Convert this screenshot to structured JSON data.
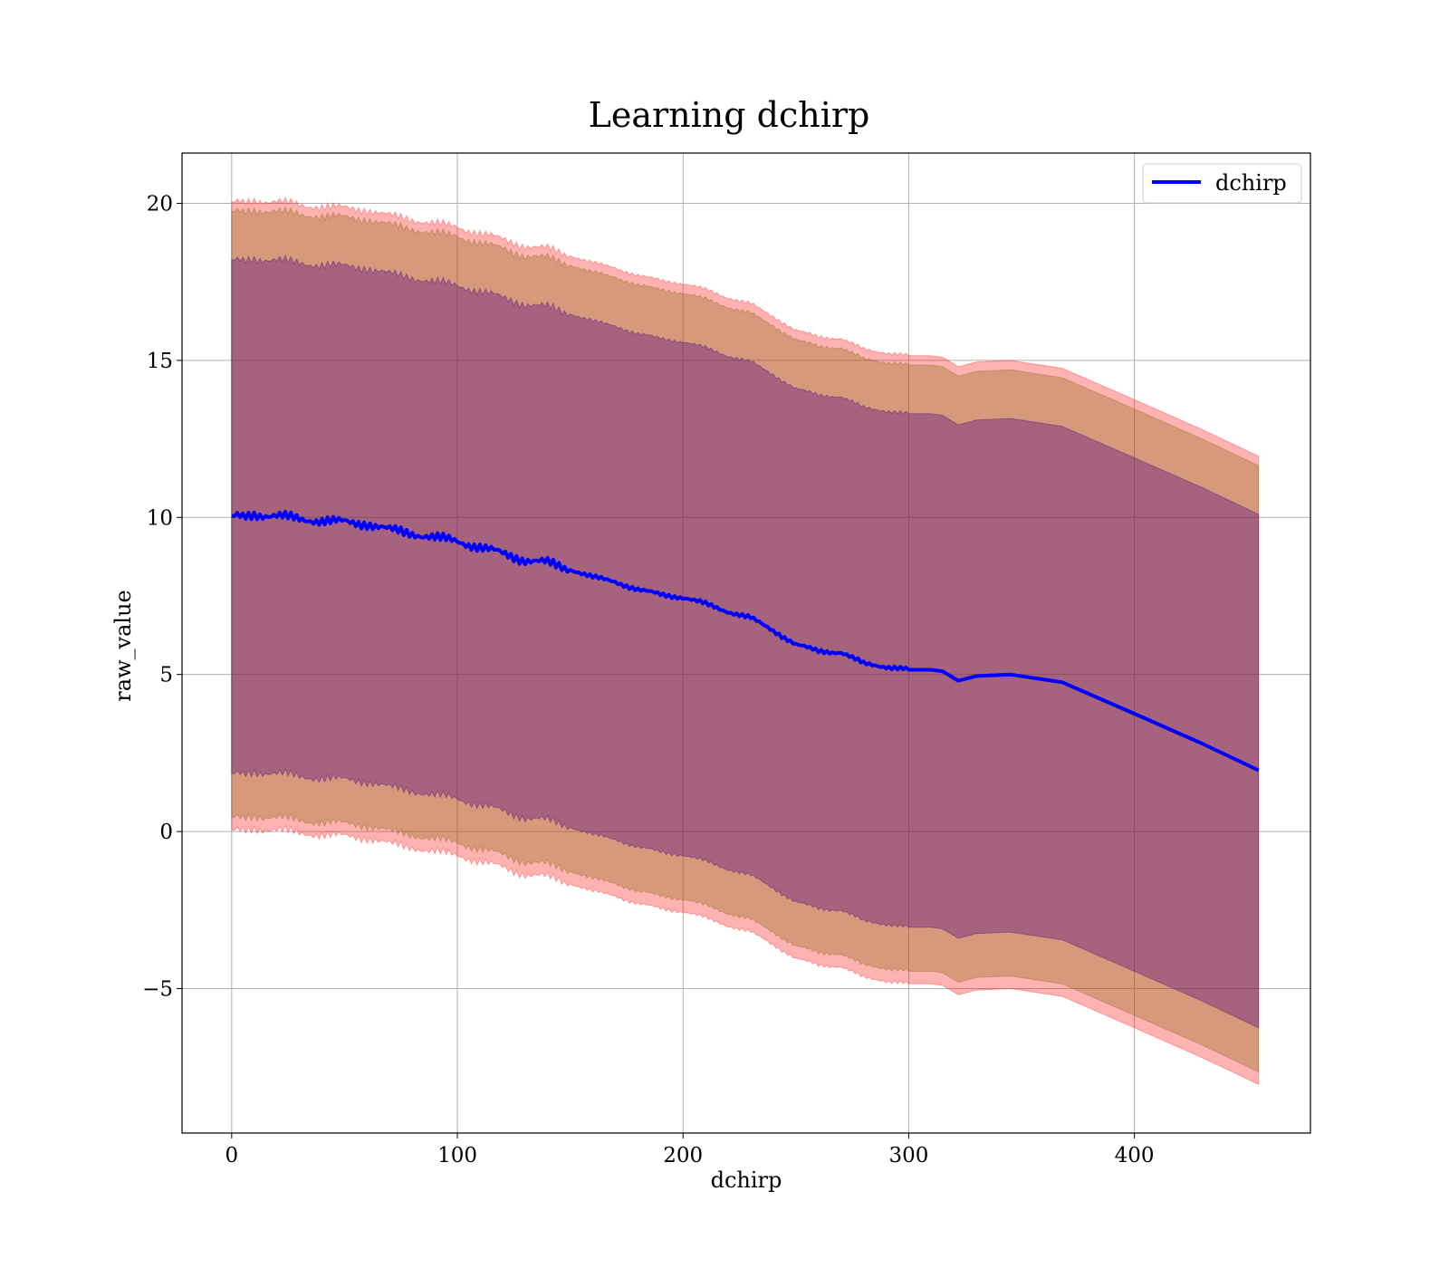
{
  "chart_data": {
    "type": "line",
    "title": "Learning dchirp",
    "xlabel": "dchirp",
    "ylabel": "raw_value",
    "xlim": [
      -22,
      478
    ],
    "ylim": [
      -9.6,
      21.6
    ],
    "xticks": [
      0,
      100,
      200,
      300,
      400
    ],
    "yticks": [
      -5,
      0,
      5,
      10,
      15,
      20
    ],
    "ytick_labels": [
      "−5",
      "0",
      "5",
      "10",
      "15",
      "20"
    ],
    "grid": true,
    "legend_position": "top-right",
    "series": [
      {
        "name": "dchirp",
        "color": "#0000ff",
        "x": [
          0,
          5,
          10,
          20,
          30,
          40,
          50,
          60,
          70,
          80,
          90,
          100,
          110,
          120,
          130,
          140,
          150,
          160,
          170,
          180,
          190,
          200,
          210,
          220,
          230,
          240,
          250,
          260,
          270,
          280,
          290,
          300,
          310,
          315,
          322,
          330,
          345,
          368,
          400,
          430,
          455
        ],
        "y": [
          10.05,
          10.0,
          10.1,
          10.05,
          9.95,
          9.9,
          9.85,
          9.8,
          9.6,
          9.5,
          9.35,
          9.25,
          9.05,
          8.85,
          8.65,
          8.55,
          8.35,
          8.1,
          7.95,
          7.7,
          7.55,
          7.45,
          7.25,
          7.0,
          6.8,
          6.4,
          5.95,
          5.75,
          5.7,
          5.35,
          5.25,
          5.15,
          5.15,
          5.1,
          4.8,
          4.95,
          5.0,
          4.75,
          3.75,
          2.8,
          1.95
        ]
      }
    ],
    "bands": [
      {
        "color": "#ff0000",
        "opacity": 0.3,
        "offset_low": -10.0,
        "offset_high": 10.0
      },
      {
        "color": "#8b6914",
        "opacity": 0.35,
        "offset_low": -9.6,
        "offset_high": 9.7
      },
      {
        "color": "#4b0082",
        "opacity": 0.35,
        "offset_low": -8.2,
        "offset_high": 8.15
      }
    ]
  }
}
